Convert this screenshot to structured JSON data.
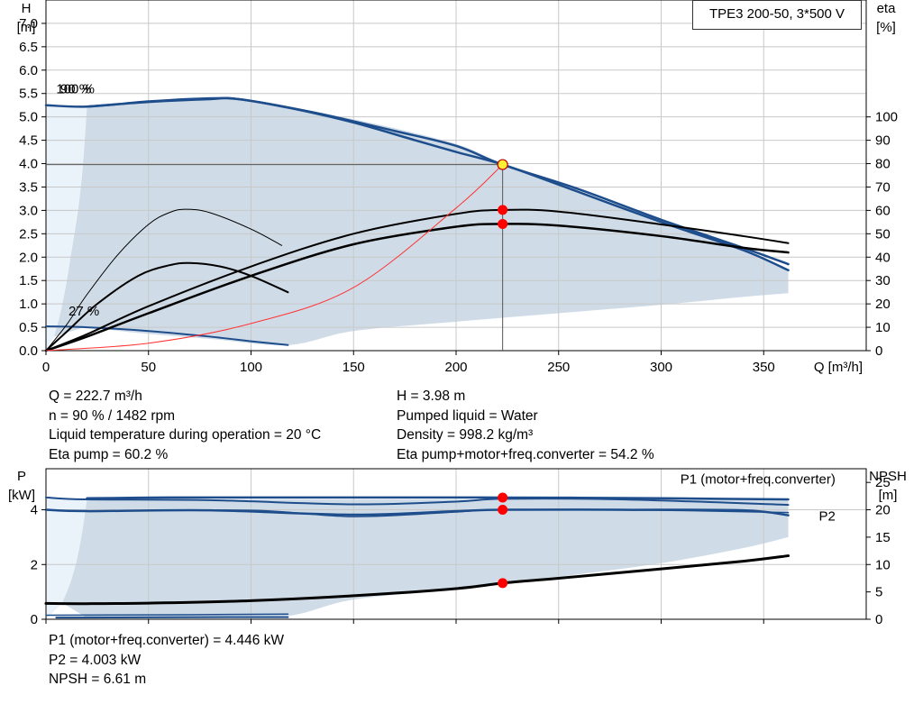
{
  "model_label": "TPE3 200-50, 3*500 V",
  "operating_point": {
    "left": [
      "Q = 222.7 m³/h",
      "n = 90 % / 1482 rpm",
      "Liquid temperature during operation = 20 °C",
      "Eta pump = 60.2 %"
    ],
    "right": [
      "H = 3.98 m",
      "Pumped liquid = Water",
      "Density = 998.2 kg/m³",
      "Eta pump+motor+freq.converter = 54.2 %"
    ]
  },
  "power_readout": [
    "P1 (motor+freq.converter) = 4.446 kW",
    "P2 = 4.003 kW",
    "NPSH = 6.61 m"
  ],
  "colors": {
    "grey_region": "#cfdce8",
    "light_region": "#eaf2fa",
    "blue_curve": "#1e4d8c",
    "black_curve": "#000000",
    "system_curve": "#ff3333",
    "grid": "#c8c8c8",
    "point_red": "#ff0000",
    "point_yellow": "#ffee33"
  },
  "chart_data": [
    {
      "type": "line",
      "title": "",
      "xlabel": "Q [m³/h]",
      "ylabel_left": [
        "H",
        "[m]"
      ],
      "ylabel_right": [
        "eta",
        "[%]"
      ],
      "xlim": [
        0,
        400
      ],
      "x_ticks": [
        0,
        50,
        100,
        150,
        200,
        250,
        300,
        350
      ],
      "x_tick_labels": [
        "0",
        "50",
        "100",
        "150",
        "200",
        "250",
        "300",
        "350"
      ],
      "ylim_left": [
        0,
        7.5
      ],
      "y_ticks_left": [
        0,
        0.5,
        1,
        1.5,
        2,
        2.5,
        3,
        3.5,
        4,
        4.5,
        5,
        5.5,
        6,
        6.5,
        7
      ],
      "y_tick_labels_left": [
        "0.0",
        "0.5",
        "1.0",
        "1.5",
        "2.0",
        "2.5",
        "3.0",
        "3.5",
        "4.0",
        "4.5",
        "5.0",
        "5.5",
        "6.0",
        "6.5",
        "7.0"
      ],
      "ylim_right": [
        0,
        150
      ],
      "y_ticks_right": [
        0,
        10,
        20,
        30,
        40,
        50,
        60,
        70,
        80,
        90,
        100
      ],
      "y_tick_labels_right": [
        "0",
        "10",
        "20",
        "30",
        "40",
        "50",
        "60",
        "70",
        "80",
        "90",
        "100"
      ],
      "curve_labels": [
        {
          "text": "100 %",
          "x": 5,
          "y": 5.5
        },
        {
          "text": "90 %",
          "x": 7,
          "y": 5.5
        },
        {
          "text": "27 %",
          "x": 11,
          "y": 0.75
        }
      ],
      "operating_region": {
        "upper": [
          [
            20,
            5.22
          ],
          [
            50,
            5.32
          ],
          [
            80,
            5.38
          ],
          [
            100,
            5.32
          ],
          [
            150,
            4.95
          ],
          [
            200,
            4.42
          ],
          [
            222.7,
            3.98
          ],
          [
            250,
            3.55
          ],
          [
            300,
            2.75
          ],
          [
            340,
            2.15
          ],
          [
            362,
            1.72
          ]
        ],
        "lower": [
          [
            362,
            1.23
          ],
          [
            340,
            1.15
          ],
          [
            300,
            0.98
          ],
          [
            250,
            0.8
          ],
          [
            200,
            0.62
          ],
          [
            150,
            0.42
          ],
          [
            118,
            0.12
          ],
          [
            80,
            0.25
          ],
          [
            40,
            0.4
          ],
          [
            20,
            0.52
          ]
        ],
        "left_edge": [
          [
            20,
            5.22
          ],
          [
            17,
            3.5
          ],
          [
            12,
            2.0
          ],
          [
            8,
            1.0
          ],
          [
            4,
            0.3
          ],
          [
            0,
            0.0
          ],
          [
            0,
            5.25
          ]
        ]
      },
      "series": [
        {
          "name": "",
          "kind": "H",
          "width": 2.5,
          "color_key": "blue_curve",
          "points": [
            [
              0,
              5.25
            ],
            [
              20,
              5.22
            ],
            [
              50,
              5.33
            ],
            [
              75,
              5.39
            ],
            [
              94,
              5.38
            ],
            [
              120,
              5.18
            ],
            [
              150,
              4.88
            ],
            [
              180,
              4.5
            ],
            [
              200,
              4.25
            ],
            [
              222.7,
              3.98
            ],
            [
              250,
              3.55
            ],
            [
              300,
              2.75
            ],
            [
              340,
              2.15
            ],
            [
              362,
              1.72
            ]
          ]
        },
        {
          "name": "",
          "kind": "H",
          "width": 2.5,
          "color_key": "blue_curve",
          "points": [
            [
              20,
              5.22
            ],
            [
              50,
              5.32
            ],
            [
              80,
              5.38
            ],
            [
              94,
              5.38
            ],
            [
              130,
              5.1
            ],
            [
              170,
              4.7
            ],
            [
              200,
              4.38
            ],
            [
              222.7,
              3.98
            ],
            [
              260,
              3.45
            ],
            [
              300,
              2.8
            ],
            [
              340,
              2.2
            ],
            [
              362,
              1.85
            ]
          ]
        },
        {
          "name": "",
          "kind": "H",
          "width": 2,
          "color_key": "blue_curve",
          "points": [
            [
              0,
              0.52
            ],
            [
              20,
              0.5
            ],
            [
              50,
              0.42
            ],
            [
              80,
              0.3
            ],
            [
              100,
              0.2
            ],
            [
              118,
              0.12
            ]
          ]
        },
        {
          "name": "",
          "kind": "eta",
          "axis": "right",
          "width": 2.5,
          "color_key": "black_curve",
          "points": [
            [
              0,
              0
            ],
            [
              20,
              6
            ],
            [
              50,
              16
            ],
            [
              100,
              32
            ],
            [
              150,
              45.5
            ],
            [
              200,
              53
            ],
            [
              222.7,
              54.2
            ],
            [
              250,
              53.5
            ],
            [
              300,
              49
            ],
            [
              340,
              44
            ],
            [
              362,
              42
            ]
          ]
        },
        {
          "name": "",
          "kind": "eta",
          "axis": "right",
          "width": 2,
          "color_key": "black_curve",
          "points": [
            [
              0,
              0
            ],
            [
              20,
              7
            ],
            [
              50,
              19
            ],
            [
              100,
              36
            ],
            [
              150,
              50
            ],
            [
              200,
              58.5
            ],
            [
              222.7,
              60.2
            ],
            [
              250,
              59.5
            ],
            [
              300,
              54
            ],
            [
              340,
              49
            ],
            [
              362,
              46
            ]
          ]
        },
        {
          "name": "",
          "kind": "eta",
          "axis": "right",
          "width": 2,
          "color_key": "black_curve",
          "points": [
            [
              0,
              0
            ],
            [
              10,
              8
            ],
            [
              25,
              20
            ],
            [
              45,
              32
            ],
            [
              60,
              36.5
            ],
            [
              70,
              37.5
            ],
            [
              85,
              36
            ],
            [
              100,
              32
            ],
            [
              118,
              25
            ]
          ]
        },
        {
          "name": "",
          "kind": "eta",
          "axis": "right",
          "width": 1,
          "color_key": "black_curve",
          "points": [
            [
              0,
              0
            ],
            [
              10,
              11
            ],
            [
              20,
              24
            ],
            [
              35,
              41
            ],
            [
              50,
              54
            ],
            [
              60,
              59
            ],
            [
              68,
              60.5
            ],
            [
              80,
              59
            ],
            [
              100,
              52
            ],
            [
              115,
              45
            ]
          ]
        },
        {
          "name": "",
          "kind": "system",
          "width": 1,
          "color_key": "system_curve",
          "points": [
            [
              0,
              0
            ],
            [
              50,
              0.16
            ],
            [
              100,
              0.58
            ],
            [
              150,
              1.35
            ],
            [
              200,
              3.05
            ],
            [
              222.7,
              3.98
            ]
          ]
        }
      ],
      "crosshair": {
        "x": 222.7,
        "y": 3.98
      },
      "points": [
        {
          "x": 222.7,
          "y": 3.98,
          "axis": "left",
          "color_key": "point_yellow"
        },
        {
          "x": 222.7,
          "y": 60.2,
          "axis": "right",
          "color_key": "point_red"
        },
        {
          "x": 222.7,
          "y": 54.2,
          "axis": "right",
          "color_key": "point_red"
        }
      ]
    },
    {
      "type": "line",
      "title": "",
      "xlabel": "",
      "ylabel_left": [
        "P",
        "[kW]"
      ],
      "ylabel_right": [
        "NPSH",
        "[m]"
      ],
      "xlim": [
        0,
        400
      ],
      "x_ticks": [
        0,
        50,
        100,
        150,
        200,
        250,
        300,
        350
      ],
      "ylim_left": [
        0,
        5.5
      ],
      "y_ticks_left": [
        0,
        2,
        4
      ],
      "y_tick_labels_left": [
        "0",
        "2",
        "4"
      ],
      "ylim_right": [
        0,
        27.5
      ],
      "y_ticks_right": [
        0,
        5,
        10,
        15,
        20,
        25
      ],
      "y_tick_labels_right": [
        "0",
        "5",
        "10",
        "15",
        "20",
        "25"
      ],
      "curve_labels": [
        {
          "text": "P1 (motor+freq.converter)",
          "x": 385,
          "y": 4.95,
          "anchor": "end",
          "color_key": "blue_curve"
        },
        {
          "text": "P2",
          "x": 385,
          "y": 3.6,
          "anchor": "end",
          "color_key": "blue_curve"
        }
      ],
      "operating_region": {
        "upper": [
          [
            20,
            4.38
          ],
          [
            100,
            4.38
          ],
          [
            200,
            4.38
          ],
          [
            300,
            4.38
          ],
          [
            362,
            4.35
          ]
        ],
        "lower": [
          [
            362,
            3.0
          ],
          [
            340,
            2.6
          ],
          [
            300,
            2.05
          ],
          [
            250,
            1.55
          ],
          [
            200,
            1.1
          ],
          [
            150,
            0.72
          ],
          [
            118,
            0.12
          ],
          [
            80,
            0.08
          ],
          [
            40,
            0.05
          ],
          [
            20,
            0.05
          ]
        ],
        "left_edge": [
          [
            20,
            4.38
          ],
          [
            17,
            2.9
          ],
          [
            13,
            1.6
          ],
          [
            8,
            0.6
          ],
          [
            0,
            0.0
          ],
          [
            0,
            4.45
          ]
        ]
      },
      "series": [
        {
          "name": "P1 (motor+freq.converter)",
          "kind": "P1",
          "width": 2.5,
          "color_key": "blue_curve",
          "points": [
            [
              20,
              4.42
            ],
            [
              60,
              4.45
            ],
            [
              100,
              4.45
            ],
            [
              150,
              4.45
            ],
            [
              200,
              4.45
            ],
            [
              222.7,
              4.446
            ],
            [
              260,
              4.44
            ],
            [
              300,
              4.42
            ],
            [
              362,
              4.38
            ]
          ]
        },
        {
          "name": "",
          "kind": "P1b",
          "width": 2,
          "color_key": "blue_curve",
          "points": [
            [
              0,
              4.45
            ],
            [
              20,
              4.38
            ],
            [
              80,
              4.35
            ],
            [
              150,
              4.2
            ],
            [
              200,
              4.3
            ],
            [
              222.7,
              4.4
            ],
            [
              280,
              4.38
            ],
            [
              362,
              4.18
            ]
          ]
        },
        {
          "name": "P2",
          "kind": "P2",
          "width": 2.5,
          "color_key": "blue_curve",
          "points": [
            [
              0,
              4.0
            ],
            [
              20,
              3.95
            ],
            [
              80,
              3.98
            ],
            [
              150,
              3.82
            ],
            [
              200,
              3.95
            ],
            [
              222.7,
              4.003
            ],
            [
              280,
              4.0
            ],
            [
              340,
              3.98
            ],
            [
              362,
              3.8
            ]
          ]
        },
        {
          "name": "",
          "kind": "P2b",
          "width": 1.5,
          "color_key": "blue_curve",
          "points": [
            [
              20,
              3.95
            ],
            [
              100,
              3.98
            ],
            [
              150,
              3.75
            ],
            [
              200,
              3.92
            ],
            [
              222.7,
              4.0
            ],
            [
              300,
              3.98
            ],
            [
              362,
              3.9
            ]
          ]
        },
        {
          "name": "",
          "kind": "NPSH",
          "axis": "right",
          "width": 3,
          "color_key": "black_curve",
          "points": [
            [
              0,
              2.9
            ],
            [
              20,
              2.85
            ],
            [
              50,
              2.95
            ],
            [
              100,
              3.4
            ],
            [
              150,
              4.3
            ],
            [
              200,
              5.6
            ],
            [
              222.7,
              6.61
            ],
            [
              250,
              7.5
            ],
            [
              300,
              9.2
            ],
            [
              340,
              10.6
            ],
            [
              362,
              11.6
            ]
          ]
        },
        {
          "name": "",
          "kind": "NPSHb",
          "axis": "right",
          "width": 1.5,
          "color_key": "blue_curve",
          "points": [
            [
              0,
              0.75
            ],
            [
              50,
              0.8
            ],
            [
              100,
              0.9
            ],
            [
              118,
              0.95
            ]
          ]
        },
        {
          "name": "",
          "kind": "NPSHc",
          "axis": "right",
          "width": 2,
          "color_key": "blue_curve",
          "points": [
            [
              5,
              0.3
            ],
            [
              50,
              0.35
            ],
            [
              100,
              0.4
            ],
            [
              118,
              0.4
            ]
          ]
        },
        {
          "name": "",
          "kind": "tail",
          "width": 1,
          "color_key": "black_curve",
          "points": [
            [
              0,
              0.58
            ],
            [
              20,
              0.55
            ]
          ]
        }
      ],
      "points": [
        {
          "x": 222.7,
          "y": 4.446,
          "axis": "left",
          "color_key": "point_red"
        },
        {
          "x": 222.7,
          "y": 4.003,
          "axis": "left",
          "color_key": "point_red"
        },
        {
          "x": 222.7,
          "y": 6.61,
          "axis": "right",
          "color_key": "point_red"
        }
      ]
    }
  ]
}
